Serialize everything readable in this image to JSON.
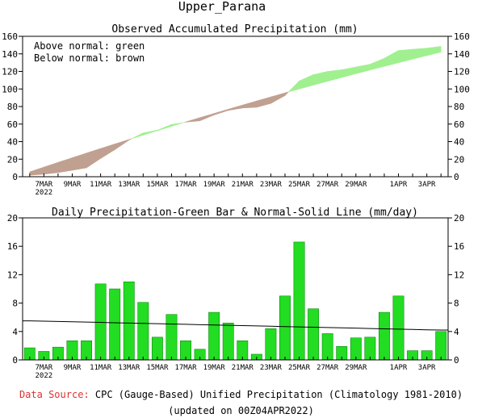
{
  "title": "Upper_Parana",
  "chart_data": [
    {
      "type": "area",
      "title": "Observed Accumulated Precipitation (mm)",
      "legend": [
        "Above normal: green",
        "Below normal: brown"
      ],
      "legend_placement": "top-left",
      "ylim": [
        0,
        160
      ],
      "yticks": [
        0,
        20,
        40,
        60,
        80,
        100,
        120,
        140,
        160
      ],
      "x_ticks": [
        "7MAR",
        "9MAR",
        "11MAR",
        "13MAR",
        "15MAR",
        "17MAR",
        "19MAR",
        "21MAR",
        "23MAR",
        "25MAR",
        "27MAR",
        "29MAR",
        "1APR",
        "3APR"
      ],
      "x_year_label": "2022",
      "days": [
        "6MAR",
        "7MAR",
        "8MAR",
        "9MAR",
        "10MAR",
        "11MAR",
        "12MAR",
        "13MAR",
        "14MAR",
        "15MAR",
        "16MAR",
        "17MAR",
        "18MAR",
        "19MAR",
        "20MAR",
        "21MAR",
        "22MAR",
        "23MAR",
        "24MAR",
        "25MAR",
        "26MAR",
        "27MAR",
        "28MAR",
        "29MAR",
        "30MAR",
        "31MAR",
        "1APR",
        "2APR",
        "3APR",
        "4APR"
      ],
      "series": [
        {
          "name": "Observed",
          "values": [
            1.7,
            2.9,
            4.7,
            7.4,
            10.1,
            20.8,
            30.8,
            41.8,
            49.9,
            53.1,
            59.5,
            62.2,
            63.7,
            70.4,
            75.6,
            78.3,
            79.1,
            83.5,
            92.5,
            109.1,
            116.3,
            120.0,
            121.9,
            125.0,
            128.2,
            134.9,
            143.9,
            145.2,
            146.5,
            148.5
          ]
        },
        {
          "name": "Normal",
          "values": [
            5.5,
            10.9,
            16.3,
            21.6,
            26.9,
            32.1,
            37.3,
            42.4,
            47.5,
            52.5,
            57.5,
            62.4,
            67.3,
            72.1,
            76.9,
            81.6,
            86.3,
            90.9,
            95.5,
            100.0,
            104.4,
            108.8,
            113.1,
            117.4,
            121.6,
            125.8,
            129.9,
            134.0,
            138.0,
            142.0
          ]
        }
      ],
      "colors": {
        "above": "#a0f090",
        "below": "#c0a090"
      }
    },
    {
      "type": "bar",
      "title": "Daily Precipitation-Green Bar & Normal-Solid Line (mm/day)",
      "ylim": [
        0,
        20
      ],
      "yticks": [
        0,
        4,
        8,
        12,
        16,
        20
      ],
      "x_ticks": [
        "7MAR",
        "9MAR",
        "11MAR",
        "13MAR",
        "15MAR",
        "17MAR",
        "19MAR",
        "21MAR",
        "23MAR",
        "25MAR",
        "27MAR",
        "29MAR",
        "1APR",
        "3APR"
      ],
      "x_year_label": "2022",
      "series": [
        {
          "name": "Daily Precipitation",
          "values": [
            1.7,
            1.2,
            1.8,
            2.7,
            2.7,
            10.7,
            10.0,
            11.0,
            8.1,
            3.2,
            6.4,
            2.7,
            1.5,
            6.7,
            5.2,
            2.7,
            0.8,
            4.4,
            9.0,
            16.6,
            7.2,
            3.7,
            1.9,
            3.1,
            3.2,
            6.7,
            9.0,
            1.3,
            1.3,
            4.0
          ]
        },
        {
          "name": "Normal",
          "values": [
            5.5,
            5.46,
            5.41,
            5.37,
            5.32,
            5.28,
            5.23,
            5.19,
            5.14,
            5.1,
            5.05,
            5.01,
            4.96,
            4.92,
            4.87,
            4.83,
            4.78,
            4.74,
            4.69,
            4.65,
            4.6,
            4.56,
            4.51,
            4.47,
            4.42,
            4.38,
            4.33,
            4.29,
            4.24,
            4.2
          ]
        }
      ],
      "colors": {
        "bar": "#22dd22",
        "bar_edge": "#007700",
        "line": "#000000"
      }
    }
  ],
  "footer": {
    "source_label": "Data Source:",
    "source_text": "CPC (Gauge-Based) Unified Precipitation (Climatology 1981-2010)",
    "updated": "(updated on 00Z04APR2022)"
  }
}
